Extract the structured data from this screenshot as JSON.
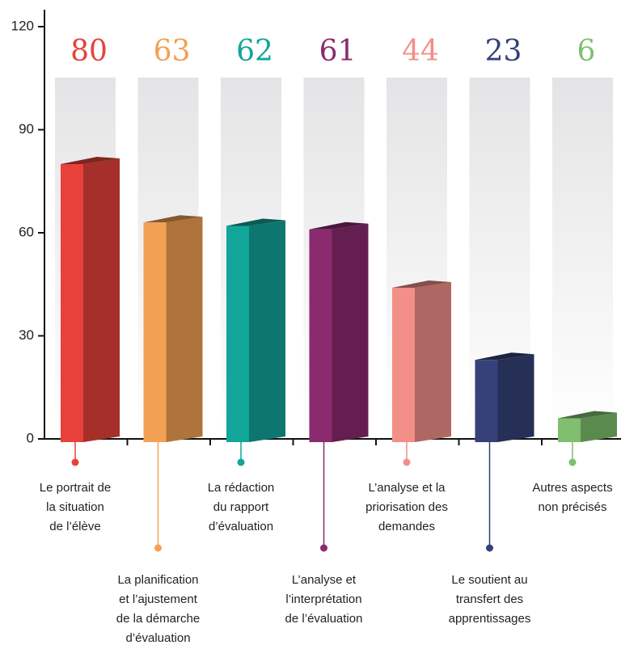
{
  "chart_data": {
    "type": "bar3d",
    "categories": [
      [
        "Le portrait de",
        "la situation",
        "de l’élève"
      ],
      [
        "La planification",
        "et l’ajustement",
        "de la démarche",
        "d’évaluation"
      ],
      [
        "La rédaction",
        "du rapport",
        "d’évaluation"
      ],
      [
        "L’analyse et",
        "l’interprétation",
        "de l’évaluation"
      ],
      [
        "L’analyse et la",
        "priorisation des",
        "demandes"
      ],
      [
        "Le soutient au",
        "transfert des",
        "apprentissages"
      ],
      [
        "Autres aspects",
        "non précisés"
      ]
    ],
    "values": [
      80,
      63,
      62,
      61,
      44,
      23,
      6
    ],
    "colors": [
      "#e8413a",
      "#f2a153",
      "#12a59a",
      "#8b2a6e",
      "#f28f88",
      "#354178",
      "#7fbf6e"
    ],
    "ylim": [
      0,
      120
    ],
    "yticks": [
      0,
      30,
      60,
      90,
      120
    ]
  }
}
